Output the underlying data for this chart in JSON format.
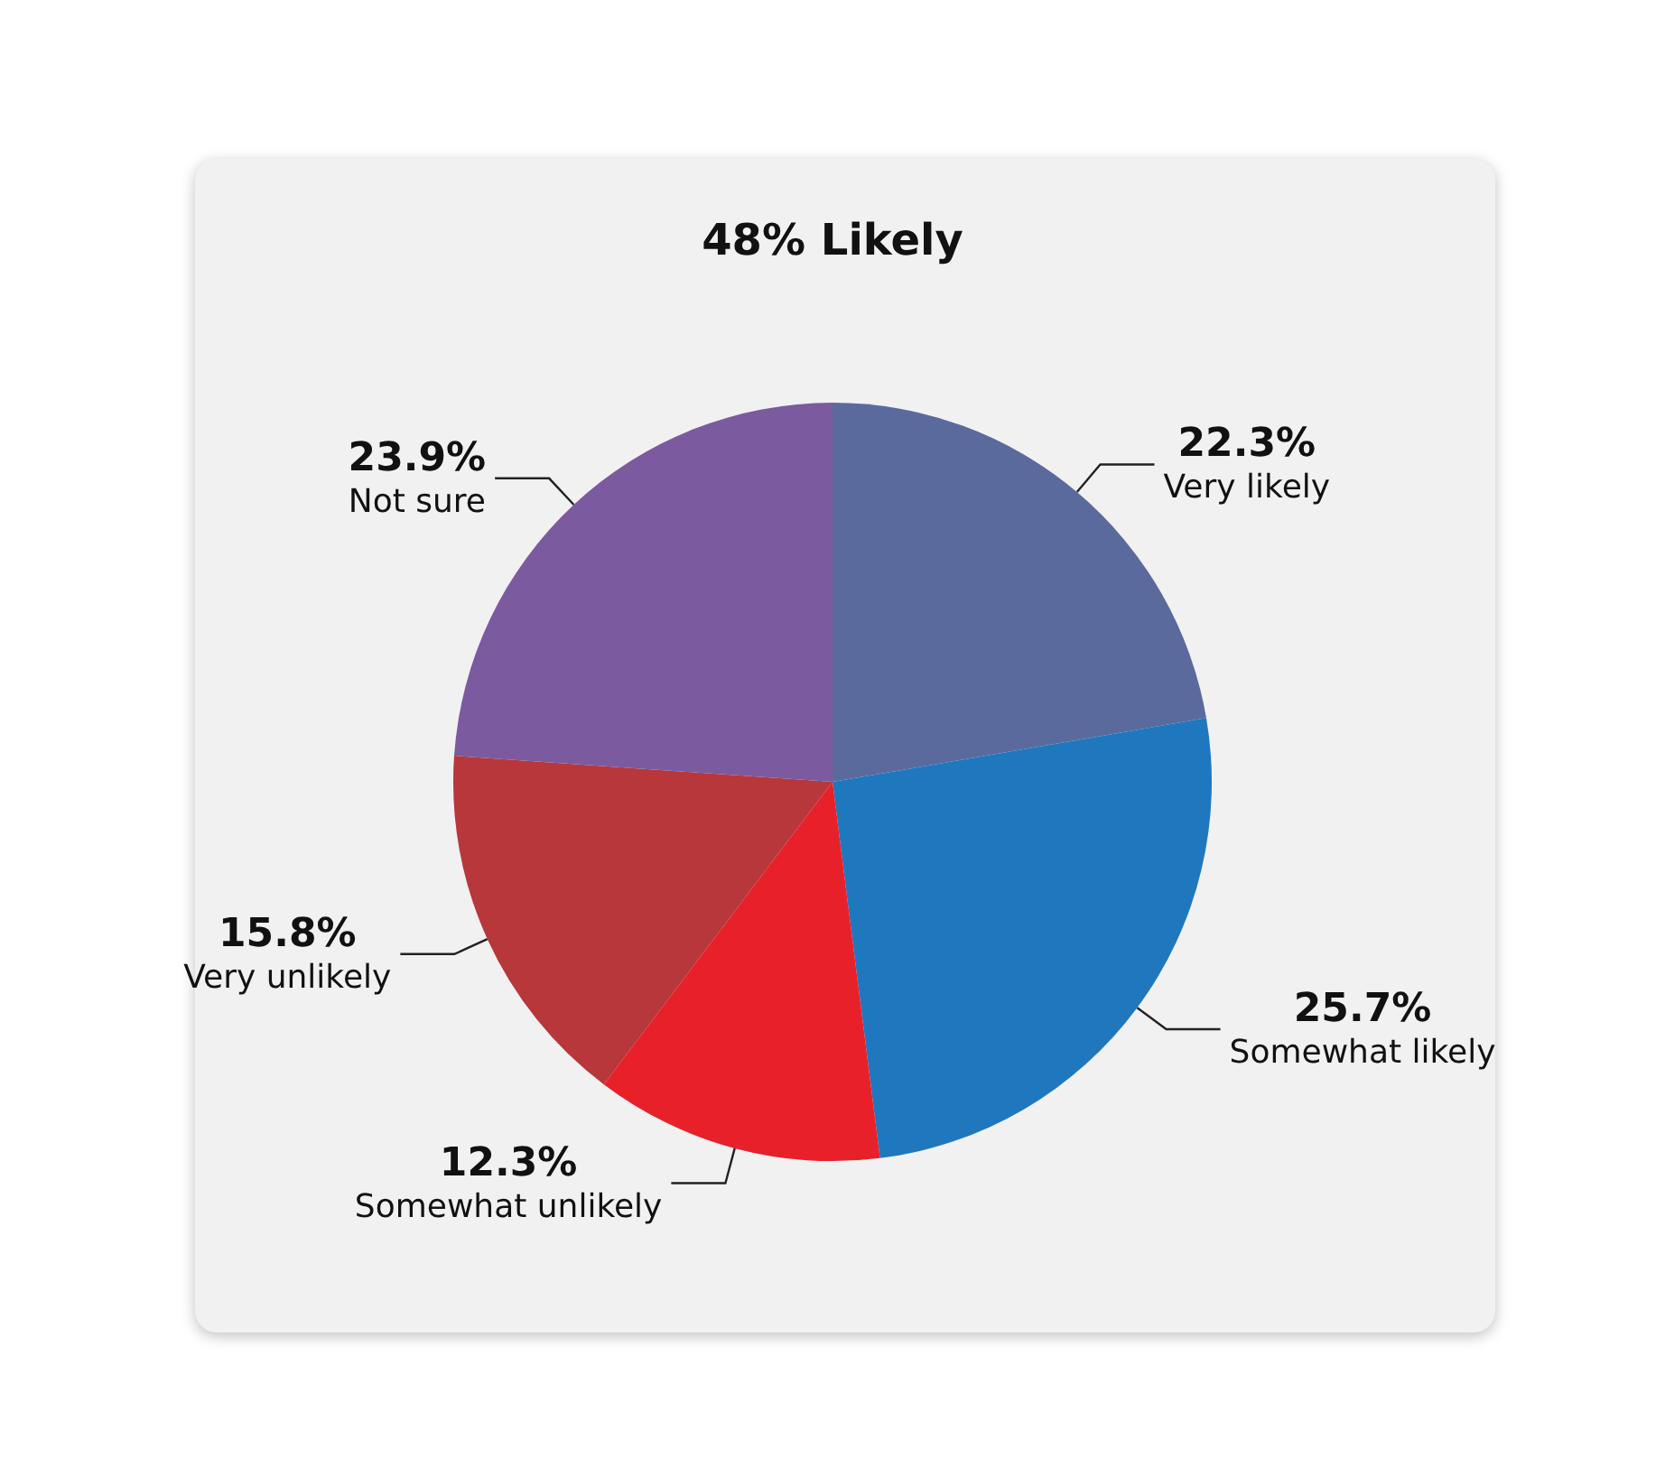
{
  "chart_data": {
    "type": "pie",
    "title": "48% Likely",
    "categories": [
      "Very likely",
      "Somewhat likely",
      "Somewhat unlikely",
      "Very unlikely",
      "Not sure"
    ],
    "values": [
      22.3,
      25.7,
      12.3,
      15.8,
      23.9
    ],
    "value_labels": [
      "22.3%",
      "25.7%",
      "12.3%",
      "15.8%",
      "23.9%"
    ],
    "colors": [
      "#5b6a9c",
      "#1f78be",
      "#e8202a",
      "#b8373a",
      "#7b5a9f"
    ],
    "legend": false
  }
}
